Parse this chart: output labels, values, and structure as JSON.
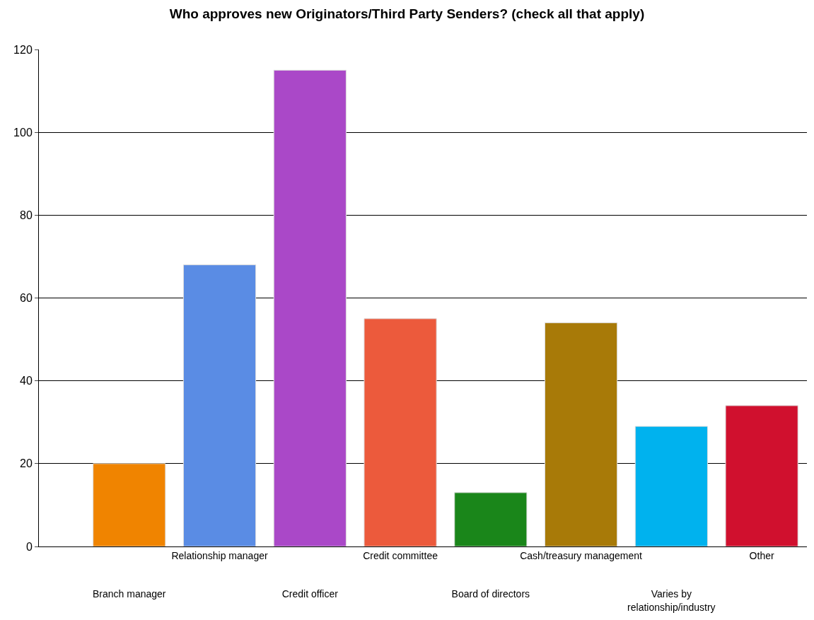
{
  "chart_data": {
    "type": "bar",
    "title": "Who approves new Originators/Third Party Senders? (check all that apply)",
    "categories": [
      "Branch manager",
      "Relationship manager",
      "Credit officer",
      "Credit committee",
      "Board of directors",
      "Cash/treasury management",
      "Varies by relationship/industry",
      "Other"
    ],
    "values": [
      20,
      68,
      115,
      55,
      13,
      54,
      29,
      34
    ],
    "colors": [
      "#f08400",
      "#5a8ce4",
      "#aa48c8",
      "#ec5a3c",
      "#1a861a",
      "#a87a08",
      "#00b2ee",
      "#d0102e"
    ],
    "ylim": [
      0,
      120
    ],
    "yticks": [
      0,
      20,
      40,
      60,
      80,
      100,
      120
    ],
    "grid": "y"
  }
}
